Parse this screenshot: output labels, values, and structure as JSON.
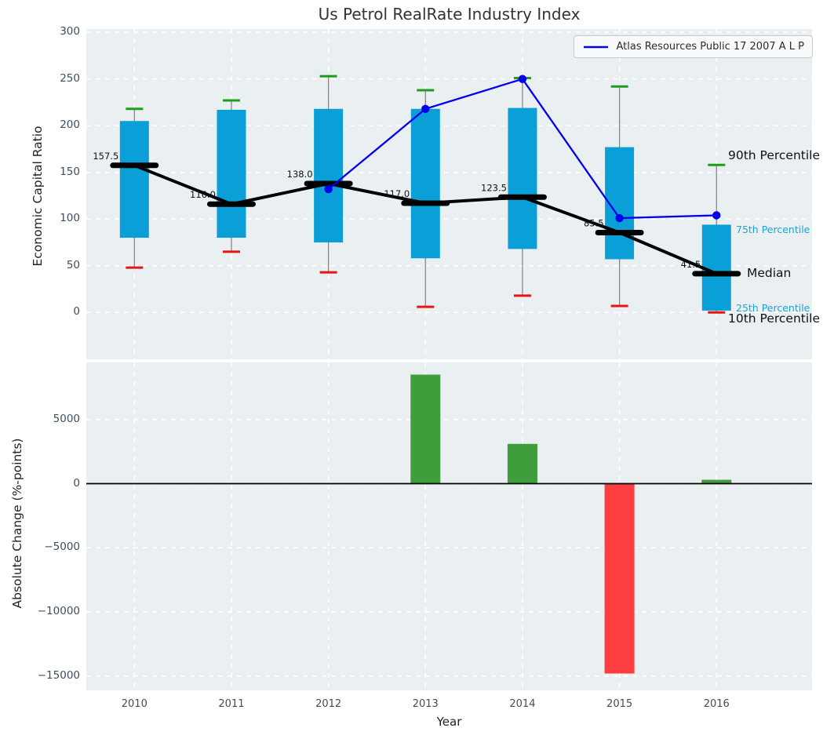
{
  "title": "Us Petrol RealRate Industry Index",
  "legend": {
    "label": "Atlas Resources Public 17 2007 A L P"
  },
  "colors": {
    "panel_bg": "#eaeff1",
    "grid": "#ffffff",
    "box_fill": "#0a9fd6",
    "whisker_line": "#7f7f7f",
    "cap_90th": "#1c9e1c",
    "cap_10th": "#e61414",
    "median_line": "#000000",
    "atlas_line": "#0000ee",
    "bar_positive": "#3d9e3b",
    "bar_negative": "#fc3e3e",
    "tick_text": "#3e4e5e",
    "percentile_accent_text": "#1ba3d9"
  },
  "chart_data": [
    {
      "type": "boxplot",
      "title": "Us Petrol RealRate Industry Index",
      "ylabel": "Economic Capital Ratio",
      "categories": [
        "2010",
        "2011",
        "2012",
        "2013",
        "2014",
        "2015",
        "2016"
      ],
      "yticks": [
        0,
        50,
        100,
        150,
        200,
        250,
        300
      ],
      "ylim": [
        -50,
        303
      ],
      "grid": true,
      "legend_position": "upper right",
      "boxes": [
        {
          "year": "2010",
          "p10": 48,
          "p25": 80,
          "median": 157.5,
          "p75": 205,
          "p90": 218
        },
        {
          "year": "2011",
          "p10": 65,
          "p25": 80,
          "median": 116.0,
          "p75": 217,
          "p90": 227
        },
        {
          "year": "2012",
          "p10": 43,
          "p25": 75,
          "median": 138.0,
          "p75": 218,
          "p90": 253
        },
        {
          "year": "2013",
          "p10": 6,
          "p25": 58,
          "median": 117.0,
          "p75": 218,
          "p90": 238
        },
        {
          "year": "2014",
          "p10": 18,
          "p25": 68,
          "median": 123.5,
          "p75": 219,
          "p90": 251
        },
        {
          "year": "2015",
          "p10": 7,
          "p25": 57,
          "median": 85.5,
          "p75": 177,
          "p90": 242
        },
        {
          "year": "2016",
          "p10": 0,
          "p25": 2,
          "median": 41.5,
          "p75": 94,
          "p90": 158
        }
      ],
      "median_labels": [
        "157.5",
        "116.0",
        "138.0",
        "117.0",
        "123.5",
        "85.5",
        "41.5"
      ],
      "series": [
        {
          "name": "Atlas Resources Public 17 2007 A L P",
          "values": [
            null,
            null,
            132,
            218,
            250,
            101,
            104
          ]
        }
      ],
      "annotations": [
        {
          "text": "90th Percentile",
          "tone": "strong"
        },
        {
          "text": "75th Percentile",
          "tone": "accent"
        },
        {
          "text": "Median",
          "tone": "strong"
        },
        {
          "text": "25th Percentile",
          "tone": "accent"
        },
        {
          "text": "10th Percentile",
          "tone": "strong"
        }
      ]
    },
    {
      "type": "bar",
      "ylabel": "Absolute Change (%-points)",
      "xlabel": "Year",
      "categories": [
        "2010",
        "2011",
        "2012",
        "2013",
        "2014",
        "2015",
        "2016"
      ],
      "values": [
        null,
        null,
        null,
        8500,
        3100,
        -14800,
        300
      ],
      "yticks": [
        5000,
        0,
        -5000,
        -10000,
        -15000
      ],
      "ylim": [
        -16100,
        9450
      ],
      "grid": true
    }
  ]
}
